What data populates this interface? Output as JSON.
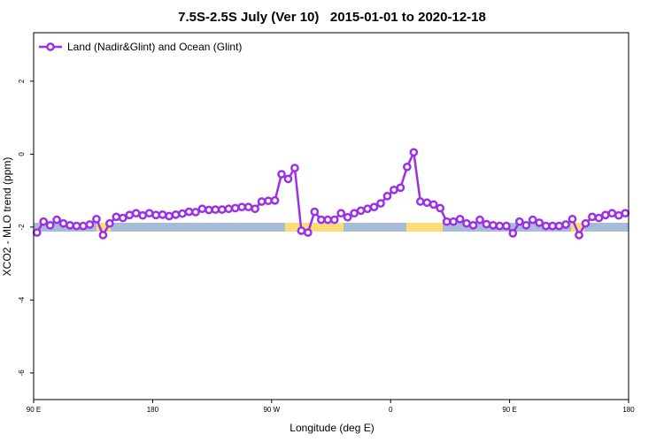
{
  "chart_data": {
    "type": "line",
    "title": "7.5S-2.5S July (Ver 10)   2015-01-01 to 2020-12-18",
    "x_label": "Longitude (deg E)",
    "y_label": "XCO2 - MLO trend (ppm)",
    "x": [
      92.5,
      97.5,
      102.5,
      107.5,
      112.5,
      117.5,
      122.5,
      127.5,
      132.5,
      137.5,
      142.5,
      147.5,
      152.5,
      157.5,
      162.5,
      167.5,
      172.5,
      177.5,
      182.5,
      187.5,
      192.5,
      197.5,
      202.5,
      207.5,
      212.5,
      217.5,
      222.5,
      227.5,
      232.5,
      237.5,
      242.5,
      247.5,
      252.5,
      257.5,
      262.5,
      267.5,
      272.5,
      277.5,
      282.5,
      287.5,
      292.5,
      297.5,
      302.5,
      307.5,
      312.5,
      317.5,
      322.5,
      327.5,
      332.5,
      337.5,
      342.5,
      347.5,
      352.5,
      357.5,
      362.5,
      367.5,
      372.5,
      377.5,
      382.5,
      387.5,
      392.5,
      397.5,
      402.5,
      407.5,
      412.5,
      417.5,
      422.5,
      427.5,
      432.5,
      437.5,
      442.5,
      447.5,
      452.5,
      457.5,
      462.5,
      467.5,
      472.5,
      477.5,
      482.5,
      487.5,
      492.5,
      497.5,
      502.5,
      507.5,
      512.5,
      517.5,
      522.5,
      527.5,
      532.5,
      537.5
    ],
    "series": [
      {
        "name": "Land (Nadir&Glint) and Ocean (Glint)",
        "color": "#9b30e8",
        "values": [
          -2.15,
          -1.85,
          -1.95,
          -1.8,
          -1.9,
          -1.95,
          -1.97,
          -1.97,
          -1.93,
          -1.78,
          -2.22,
          -1.9,
          -1.72,
          -1.75,
          -1.67,
          -1.62,
          -1.68,
          -1.62,
          -1.67,
          -1.66,
          -1.7,
          -1.66,
          -1.63,
          -1.58,
          -1.59,
          -1.5,
          -1.53,
          -1.52,
          -1.52,
          -1.5,
          -1.48,
          -1.45,
          -1.45,
          -1.5,
          -1.3,
          -1.28,
          -1.27,
          -0.55,
          -0.68,
          -0.38,
          -2.1,
          -2.15,
          -1.58,
          -1.8,
          -1.8,
          -1.8,
          -1.62,
          -1.73,
          -1.62,
          -1.55,
          -1.5,
          -1.45,
          -1.35,
          -1.15,
          -0.98,
          -0.92,
          -0.35,
          0.05,
          -1.3,
          -1.33,
          -1.38,
          -1.48,
          -1.85,
          -1.85,
          -1.78,
          -1.9,
          -1.95,
          -1.8,
          -1.92,
          -1.95,
          -1.97,
          -1.97,
          -2.17,
          -1.85,
          -1.95,
          -1.8,
          -1.88,
          -1.97,
          -1.97,
          -1.97,
          -1.93,
          -1.78,
          -2.22,
          -1.9,
          -1.72,
          -1.75,
          -1.67,
          -1.62,
          -1.68,
          -1.62
        ]
      }
    ],
    "xlim": [
      90,
      540
    ],
    "xticks": [
      {
        "value": 90,
        "label": "90 E"
      },
      180,
      {
        "value": 270,
        "label": "90 W"
      },
      {
        "value": 360,
        "label": "0"
      },
      {
        "value": 450,
        "label": "90 E"
      },
      {
        "value": 540,
        "label": "180"
      }
    ],
    "ylim": [
      -6.73,
      3.33
    ],
    "yticks": [
      2,
      0,
      -2,
      -4,
      -6
    ],
    "legend": "top-left"
  }
}
